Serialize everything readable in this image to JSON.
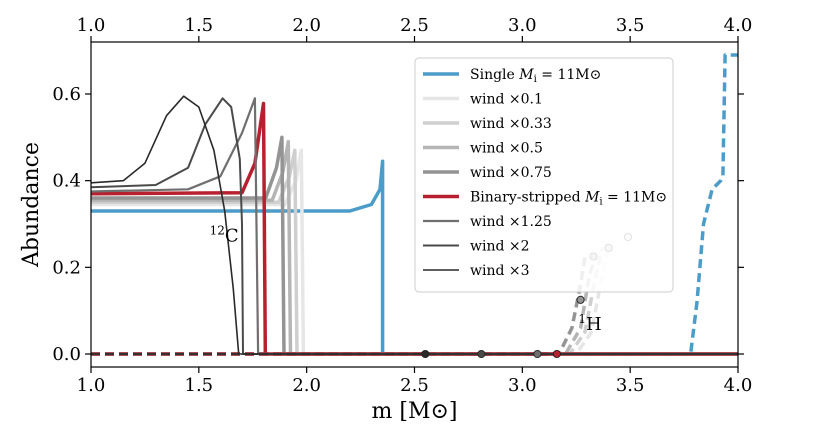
{
  "chart_data": {
    "type": "line",
    "xlabel": "m [M⊙]",
    "ylabel": "Abundance",
    "xlim": [
      1.0,
      4.0
    ],
    "ylim": [
      -0.03,
      0.72
    ],
    "x_ticks": [
      "1.0",
      "1.5",
      "2.0",
      "2.5",
      "3.0",
      "3.5",
      "4.0"
    ],
    "x_tick_values": [
      1.0,
      1.5,
      2.0,
      2.5,
      3.0,
      3.5,
      4.0
    ],
    "y_ticks": [
      "0.0",
      "0.2",
      "0.4",
      "0.6"
    ],
    "y_tick_values": [
      0.0,
      0.2,
      0.4,
      0.6
    ],
    "annotations": [
      {
        "text": "12C",
        "sup": "12",
        "base": "C",
        "x": 1.55,
        "y": 0.26
      },
      {
        "text": "1H",
        "sup": "1",
        "base": "H",
        "x": 3.26,
        "y": 0.055
      }
    ],
    "legend_position": "upper-right",
    "series": [
      {
        "name": "Single Mᵢ = 11M⊙",
        "legend": {
          "pre": "Single ",
          "math": "M",
          "sub": "i",
          "post": " = 11M⊙"
        },
        "color": "#4c9cc9",
        "width": 3.5,
        "carbon": [
          [
            1.0,
            0.33
          ],
          [
            2.2,
            0.33
          ],
          [
            2.3,
            0.345
          ],
          [
            2.34,
            0.38
          ],
          [
            2.352,
            0.445
          ],
          [
            2.352,
            0.0
          ],
          [
            4.0,
            0.0
          ]
        ],
        "hydrogen": [
          [
            1.0,
            0.0
          ],
          [
            3.78,
            0.0
          ],
          [
            3.81,
            0.12
          ],
          [
            3.84,
            0.3
          ],
          [
            3.88,
            0.38
          ],
          [
            3.92,
            0.4
          ],
          [
            3.93,
            0.41
          ],
          [
            3.94,
            0.69
          ],
          [
            4.0,
            0.69
          ]
        ]
      },
      {
        "name": "wind ×0.1",
        "legend": {
          "pre": "wind ×0.1"
        },
        "color": "#e6e6e6",
        "width": 3.5,
        "carbon": [
          [
            1.0,
            0.345
          ],
          [
            1.9,
            0.345
          ],
          [
            1.95,
            0.4
          ],
          [
            1.975,
            0.47
          ],
          [
            1.985,
            0.0
          ],
          [
            4.0,
            0.0
          ]
        ],
        "hydrogen": [
          [
            1.0,
            0.0
          ],
          [
            3.25,
            0.0
          ],
          [
            3.32,
            0.05
          ],
          [
            3.37,
            0.18
          ],
          [
            3.4,
            0.245
          ]
        ]
      },
      {
        "name": "wind ×0.33",
        "legend": {
          "pre": "wind ×0.33"
        },
        "color": "#cfcfcf",
        "width": 3.5,
        "carbon": [
          [
            1.0,
            0.35
          ],
          [
            1.87,
            0.35
          ],
          [
            1.92,
            0.41
          ],
          [
            1.945,
            0.47
          ],
          [
            1.955,
            0.0
          ],
          [
            4.0,
            0.0
          ]
        ],
        "hydrogen": [
          [
            1.0,
            0.0
          ],
          [
            3.22,
            0.0
          ],
          [
            3.29,
            0.05
          ],
          [
            3.34,
            0.18
          ],
          [
            3.37,
            0.245
          ]
        ]
      },
      {
        "name": "wind ×0.5",
        "legend": {
          "pre": "wind ×0.5"
        },
        "color": "#b5b5b5",
        "width": 3.5,
        "carbon": [
          [
            1.0,
            0.355
          ],
          [
            1.84,
            0.355
          ],
          [
            1.89,
            0.42
          ],
          [
            1.915,
            0.49
          ],
          [
            1.925,
            0.0
          ],
          [
            4.0,
            0.0
          ]
        ],
        "hydrogen": [
          [
            1.0,
            0.0
          ],
          [
            3.2,
            0.0
          ],
          [
            3.27,
            0.06
          ],
          [
            3.31,
            0.18
          ],
          [
            3.34,
            0.225
          ]
        ]
      },
      {
        "name": "wind ×0.75",
        "legend": {
          "pre": "wind ×0.75"
        },
        "color": "#949494",
        "width": 3.5,
        "carbon": [
          [
            1.0,
            0.36
          ],
          [
            1.81,
            0.36
          ],
          [
            1.86,
            0.43
          ],
          [
            1.885,
            0.5
          ],
          [
            1.895,
            0.0
          ],
          [
            4.0,
            0.0
          ]
        ],
        "hydrogen": [
          [
            1.0,
            0.0
          ],
          [
            3.17,
            0.0
          ],
          [
            3.23,
            0.06
          ],
          [
            3.27,
            0.16
          ],
          [
            3.29,
            0.225
          ]
        ]
      },
      {
        "name": "Binary-stripped Mᵢ = 11M⊙",
        "legend": {
          "pre": "Binary-stripped ",
          "math": "M",
          "sub": "i",
          "post": " = 11M⊙"
        },
        "color": "#b8202f",
        "width": 3.5,
        "carbon": [
          [
            1.0,
            0.37
          ],
          [
            1.7,
            0.372
          ],
          [
            1.76,
            0.44
          ],
          [
            1.8,
            0.578
          ],
          [
            1.808,
            0.0
          ],
          [
            4.0,
            0.0
          ]
        ],
        "hydrogen": [
          [
            1.0,
            0.0
          ],
          [
            3.16,
            0.0
          ]
        ]
      },
      {
        "name": "wind ×1.25",
        "legend": {
          "pre": "wind ×1.25"
        },
        "color": "#6f6f6f",
        "width": 2.2,
        "carbon": [
          [
            1.0,
            0.375
          ],
          [
            1.45,
            0.38
          ],
          [
            1.6,
            0.41
          ],
          [
            1.7,
            0.51
          ],
          [
            1.76,
            0.59
          ],
          [
            1.775,
            0.0
          ],
          [
            4.0,
            0.0
          ]
        ],
        "hydrogen": [
          [
            1.0,
            0.0
          ],
          [
            3.07,
            0.0
          ]
        ]
      },
      {
        "name": "wind ×2",
        "legend": {
          "pre": "wind ×2"
        },
        "color": "#4a4a4a",
        "width": 2.0,
        "carbon": [
          [
            1.0,
            0.385
          ],
          [
            1.3,
            0.39
          ],
          [
            1.45,
            0.43
          ],
          [
            1.53,
            0.53
          ],
          [
            1.61,
            0.59
          ],
          [
            1.65,
            0.57
          ],
          [
            1.69,
            0.45
          ],
          [
            1.7,
            0.3
          ],
          [
            1.705,
            0.0
          ],
          [
            4.0,
            0.0
          ]
        ],
        "hydrogen": [
          [
            1.0,
            0.0
          ],
          [
            2.81,
            0.0
          ]
        ]
      },
      {
        "name": "wind ×3",
        "legend": {
          "pre": "wind ×3"
        },
        "color": "#2a2a2a",
        "width": 1.6,
        "carbon": [
          [
            1.0,
            0.395
          ],
          [
            1.15,
            0.4
          ],
          [
            1.25,
            0.44
          ],
          [
            1.35,
            0.55
          ],
          [
            1.43,
            0.595
          ],
          [
            1.5,
            0.57
          ],
          [
            1.57,
            0.47
          ],
          [
            1.62,
            0.33
          ],
          [
            1.66,
            0.15
          ],
          [
            1.685,
            0.0
          ],
          [
            4.0,
            0.0
          ]
        ],
        "hydrogen": [
          [
            1.0,
            0.0
          ],
          [
            2.55,
            0.0
          ]
        ]
      }
    ],
    "hydrogen_markers": [
      {
        "x": 2.55,
        "y": 0.0,
        "color": "#2a2a2a"
      },
      {
        "x": 2.81,
        "y": 0.0,
        "color": "#4a4a4a"
      },
      {
        "x": 3.07,
        "y": 0.0,
        "color": "#6f6f6f"
      },
      {
        "x": 3.16,
        "y": 0.0,
        "color": "#b8202f"
      },
      {
        "x": 3.27,
        "y": 0.125,
        "color": "#949494"
      },
      {
        "x": 3.33,
        "y": 0.225,
        "color": "#b5b5b5"
      },
      {
        "x": 3.4,
        "y": 0.245,
        "color": "#cfcfcf"
      },
      {
        "x": 3.49,
        "y": 0.27,
        "color": "#e6e6e6"
      }
    ]
  }
}
